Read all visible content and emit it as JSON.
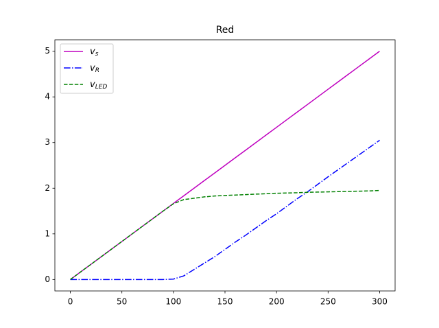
{
  "chart_data": {
    "type": "line",
    "title": "Red",
    "x": [
      0,
      10,
      20,
      30,
      40,
      50,
      60,
      70,
      80,
      90,
      100,
      110,
      120,
      130,
      140,
      150,
      160,
      170,
      180,
      190,
      200,
      210,
      220,
      230,
      240,
      250,
      260,
      270,
      280,
      290,
      300
    ],
    "series": [
      {
        "name": "vs",
        "color": "#bf00bf",
        "style": "solid",
        "values": [
          0,
          0.167,
          0.333,
          0.5,
          0.667,
          0.833,
          1.0,
          1.167,
          1.333,
          1.5,
          1.667,
          1.833,
          2.0,
          2.167,
          2.333,
          2.5,
          2.667,
          2.833,
          3.0,
          3.167,
          3.333,
          3.5,
          3.667,
          3.833,
          4.0,
          4.167,
          4.333,
          4.5,
          4.667,
          4.833,
          5.0
        ]
      },
      {
        "name": "vR",
        "color": "#0000ff",
        "style": "dashdot",
        "values": [
          0,
          0,
          0,
          0,
          0,
          0,
          0,
          0,
          0,
          0,
          0.01,
          0.08,
          0.22,
          0.36,
          0.5,
          0.66,
          0.82,
          0.97,
          1.13,
          1.29,
          1.44,
          1.605,
          1.77,
          1.92,
          2.085,
          2.25,
          2.41,
          2.57,
          2.73,
          2.89,
          3.05
        ]
      },
      {
        "name": "vLED",
        "color": "#008000",
        "style": "dashed",
        "values": [
          0,
          0.167,
          0.333,
          0.5,
          0.667,
          0.833,
          1.0,
          1.167,
          1.333,
          1.5,
          1.66,
          1.75,
          1.78,
          1.81,
          1.83,
          1.84,
          1.85,
          1.86,
          1.87,
          1.88,
          1.89,
          1.895,
          1.9,
          1.91,
          1.915,
          1.92,
          1.925,
          1.93,
          1.935,
          1.94,
          1.95
        ]
      }
    ],
    "xlim": [
      -15,
      315
    ],
    "ylim": [
      -0.25,
      5.25
    ],
    "xticks": [
      0,
      50,
      100,
      150,
      200,
      250,
      300
    ],
    "yticks": [
      0,
      1,
      2,
      3,
      4,
      5
    ],
    "legend": "upper left"
  }
}
